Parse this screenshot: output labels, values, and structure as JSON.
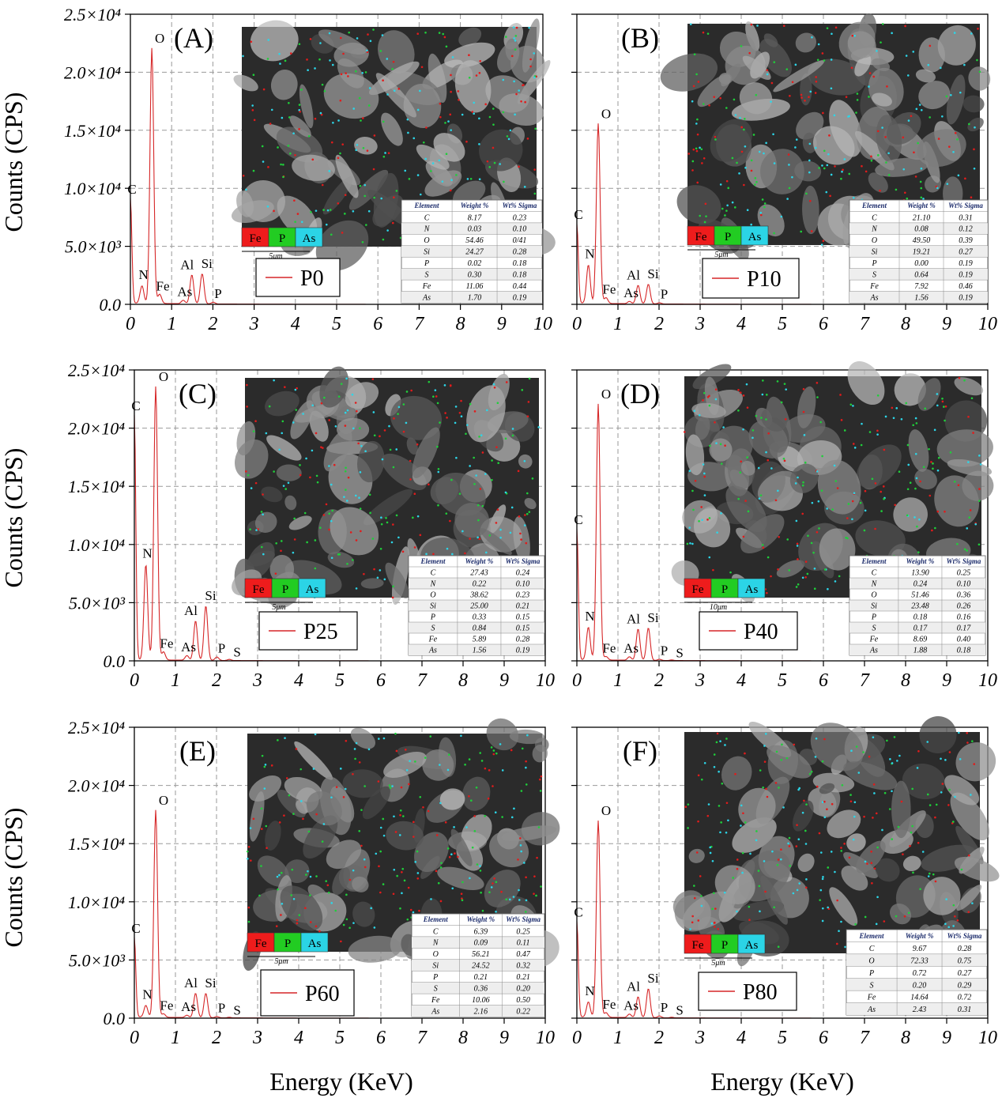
{
  "figure": {
    "x_axis_title": "Energy (KeV)",
    "y_axis_title": "Counts (CPS)",
    "elemental_map_key": [
      {
        "label": "Fe",
        "color": "#ee1c1c"
      },
      {
        "label": "P",
        "color": "#22cc22"
      },
      {
        "label": "As",
        "color": "#2bd4e6"
      }
    ],
    "table_headers": [
      "Element",
      "Weight %",
      "Wt% Sigma"
    ]
  },
  "chart_data": [
    {
      "type": "line",
      "panel": "(A)",
      "legend": "P0",
      "scale_bar": "5μm",
      "xlim": [
        0,
        10
      ],
      "ylim": [
        0,
        25000
      ],
      "x_ticks": [
        "0",
        "1",
        "2",
        "3",
        "4",
        "5",
        "6",
        "7",
        "8",
        "9",
        "10"
      ],
      "y_ticks": [
        "0.0",
        "5.0×10³",
        "1.0×10⁴",
        "1.5×10⁴",
        "2.0×10⁴",
        "2.5×10⁴"
      ],
      "peaks": [
        {
          "label": "C",
          "x": 0.0,
          "y": 9000
        },
        {
          "label": "N",
          "x": 0.28,
          "y": 1500
        },
        {
          "label": "O",
          "x": 0.52,
          "y": 22000
        },
        {
          "label": "Fe",
          "x": 0.71,
          "y": 800
        },
        {
          "label": "As",
          "x": 1.28,
          "y": 300
        },
        {
          "label": "Al",
          "x": 1.49,
          "y": 2500
        },
        {
          "label": "Si",
          "x": 1.74,
          "y": 2600
        },
        {
          "label": "P",
          "x": 2.01,
          "y": 150
        }
      ],
      "table": [
        [
          "C",
          "8.17",
          "0.23"
        ],
        [
          "N",
          "0.03",
          "0.10"
        ],
        [
          "O",
          "54.46",
          "0/41"
        ],
        [
          "Si",
          "24.27",
          "0.28"
        ],
        [
          "P",
          "0.02",
          "0.18"
        ],
        [
          "S",
          "0.30",
          "0.18"
        ],
        [
          "Fe",
          "11.06",
          "0.44"
        ],
        [
          "As",
          "1.70",
          "0.19"
        ]
      ]
    },
    {
      "type": "line",
      "panel": "(B)",
      "legend": "P10",
      "scale_bar": "5μm",
      "xlim": [
        0,
        10
      ],
      "ylim": [
        0,
        25000
      ],
      "x_ticks": [
        "0",
        "1",
        "2",
        "3",
        "4",
        "5",
        "6",
        "7",
        "8",
        "9",
        "10"
      ],
      "peaks": [
        {
          "label": "C",
          "x": 0.0,
          "y": 6800
        },
        {
          "label": "N",
          "x": 0.28,
          "y": 3300
        },
        {
          "label": "O",
          "x": 0.52,
          "y": 15500
        },
        {
          "label": "Fe",
          "x": 0.71,
          "y": 500
        },
        {
          "label": "As",
          "x": 1.28,
          "y": 200
        },
        {
          "label": "Al",
          "x": 1.49,
          "y": 1600
        },
        {
          "label": "Si",
          "x": 1.74,
          "y": 1700
        },
        {
          "label": "P",
          "x": 2.01,
          "y": 100
        }
      ],
      "table": [
        [
          "C",
          "21.10",
          "0.31"
        ],
        [
          "N",
          "0.08",
          "0.12"
        ],
        [
          "O",
          "49.50",
          "0.39"
        ],
        [
          "Si",
          "19.21",
          "0.27"
        ],
        [
          "P",
          "0.00",
          "0.19"
        ],
        [
          "S",
          "0.64",
          "0.19"
        ],
        [
          "Fe",
          "7.92",
          "0.46"
        ],
        [
          "As",
          "1.56",
          "0.19"
        ]
      ]
    },
    {
      "type": "line",
      "panel": "(C)",
      "legend": "P25",
      "scale_bar": "5μm",
      "xlim": [
        0,
        10
      ],
      "ylim": [
        0,
        25000
      ],
      "x_ticks": [
        "0",
        "1",
        "2",
        "3",
        "4",
        "5",
        "6",
        "7",
        "8",
        "9",
        "10"
      ],
      "y_ticks": [
        "0.0",
        "5.0×10³",
        "1.0×10⁴",
        "1.5×10⁴",
        "2.0×10⁴",
        "2.5×10⁴"
      ],
      "peaks": [
        {
          "label": "C",
          "x": 0.0,
          "y": 21000
        },
        {
          "label": "N",
          "x": 0.28,
          "y": 8200
        },
        {
          "label": "O",
          "x": 0.52,
          "y": 23500
        },
        {
          "label": "Fe",
          "x": 0.71,
          "y": 700
        },
        {
          "label": "As",
          "x": 1.28,
          "y": 400
        },
        {
          "label": "Al",
          "x": 1.49,
          "y": 3400
        },
        {
          "label": "Si",
          "x": 1.74,
          "y": 4700
        },
        {
          "label": "P",
          "x": 2.01,
          "y": 300
        },
        {
          "label": "S",
          "x": 2.31,
          "y": 100
        }
      ],
      "table": [
        [
          "C",
          "27.43",
          "0.24"
        ],
        [
          "N",
          "0.22",
          "0.10"
        ],
        [
          "O",
          "38.62",
          "0.23"
        ],
        [
          "Si",
          "25.00",
          "0.21"
        ],
        [
          "P",
          "0.33",
          "0.15"
        ],
        [
          "S",
          "0.84",
          "0.15"
        ],
        [
          "Fe",
          "5.89",
          "0.28"
        ],
        [
          "As",
          "1.56",
          "0.19"
        ]
      ]
    },
    {
      "type": "line",
      "panel": "(D)",
      "legend": "P40",
      "scale_bar": "10μm",
      "xlim": [
        0,
        10
      ],
      "ylim": [
        0,
        25000
      ],
      "x_ticks": [
        "0",
        "1",
        "2",
        "3",
        "4",
        "5",
        "6",
        "7",
        "8",
        "9",
        "10"
      ],
      "peaks": [
        {
          "label": "C",
          "x": 0.0,
          "y": 11200
        },
        {
          "label": "N",
          "x": 0.28,
          "y": 2800
        },
        {
          "label": "O",
          "x": 0.52,
          "y": 22000
        },
        {
          "label": "Fe",
          "x": 0.71,
          "y": 300
        },
        {
          "label": "As",
          "x": 1.28,
          "y": 300
        },
        {
          "label": "Al",
          "x": 1.49,
          "y": 2700
        },
        {
          "label": "Si",
          "x": 1.74,
          "y": 2800
        },
        {
          "label": "P",
          "x": 2.01,
          "y": 100
        },
        {
          "label": "S",
          "x": 2.31,
          "y": 50
        }
      ],
      "table": [
        [
          "C",
          "13.90",
          "0.25"
        ],
        [
          "N",
          "0.24",
          "0.10"
        ],
        [
          "O",
          "51.46",
          "0.36"
        ],
        [
          "Si",
          "23.48",
          "0.26"
        ],
        [
          "P",
          "0.18",
          "0.16"
        ],
        [
          "S",
          "0.17",
          "0.17"
        ],
        [
          "Fe",
          "8.69",
          "0.40"
        ],
        [
          "As",
          "1.88",
          "0.18"
        ]
      ]
    },
    {
      "type": "line",
      "panel": "(E)",
      "legend": "P60",
      "scale_bar": "5μm",
      "xlim": [
        0,
        10
      ],
      "ylim": [
        0,
        25000
      ],
      "x_ticks": [
        "0",
        "1",
        "2",
        "3",
        "4",
        "5",
        "6",
        "7",
        "8",
        "9",
        "10"
      ],
      "y_ticks": [
        "0.0",
        "5.0×10³",
        "1.0×10⁴",
        "1.5×10⁴",
        "2.0×10⁴",
        "2.5×10⁴"
      ],
      "peaks": [
        {
          "label": "C",
          "x": 0.0,
          "y": 6800
        },
        {
          "label": "N",
          "x": 0.28,
          "y": 1000
        },
        {
          "label": "O",
          "x": 0.52,
          "y": 17800
        },
        {
          "label": "Fe",
          "x": 0.71,
          "y": 300
        },
        {
          "label": "As",
          "x": 1.28,
          "y": 200
        },
        {
          "label": "Al",
          "x": 1.49,
          "y": 2100
        },
        {
          "label": "Si",
          "x": 1.74,
          "y": 2100
        },
        {
          "label": "P",
          "x": 2.01,
          "y": 100
        },
        {
          "label": "S",
          "x": 2.31,
          "y": 50
        }
      ],
      "table": [
        [
          "C",
          "6.39",
          "0.25"
        ],
        [
          "N",
          "0.09",
          "0.11"
        ],
        [
          "O",
          "56.21",
          "0.47"
        ],
        [
          "Si",
          "24.52",
          "0.32"
        ],
        [
          "P",
          "0.21",
          "0.21"
        ],
        [
          "S",
          "0.36",
          "0.20"
        ],
        [
          "Fe",
          "10.06",
          "0.50"
        ],
        [
          "As",
          "2.16",
          "0.22"
        ]
      ]
    },
    {
      "type": "line",
      "panel": "(F)",
      "legend": "P80",
      "scale_bar": "5μm",
      "xlim": [
        0,
        10
      ],
      "ylim": [
        0,
        25000
      ],
      "x_ticks": [
        "0",
        "1",
        "2",
        "3",
        "4",
        "5",
        "6",
        "7",
        "8",
        "9",
        "10"
      ],
      "peaks": [
        {
          "label": "C",
          "x": 0.0,
          "y": 8200
        },
        {
          "label": "N",
          "x": 0.28,
          "y": 1300
        },
        {
          "label": "O",
          "x": 0.52,
          "y": 16900
        },
        {
          "label": "Fe",
          "x": 0.71,
          "y": 400
        },
        {
          "label": "As",
          "x": 1.28,
          "y": 300
        },
        {
          "label": "Al",
          "x": 1.49,
          "y": 1800
        },
        {
          "label": "Si",
          "x": 1.74,
          "y": 2500
        },
        {
          "label": "P",
          "x": 2.01,
          "y": 150
        },
        {
          "label": "S",
          "x": 2.31,
          "y": 50
        }
      ],
      "table": [
        [
          "C",
          "9.67",
          "0.28"
        ],
        [
          "O",
          "72.33",
          "0.75"
        ],
        [
          "P",
          "0.72",
          "0.27"
        ],
        [
          "S",
          "0.20",
          "0.29"
        ],
        [
          "Fe",
          "14.64",
          "0.72"
        ],
        [
          "As",
          "2.43",
          "0.31"
        ]
      ]
    }
  ]
}
